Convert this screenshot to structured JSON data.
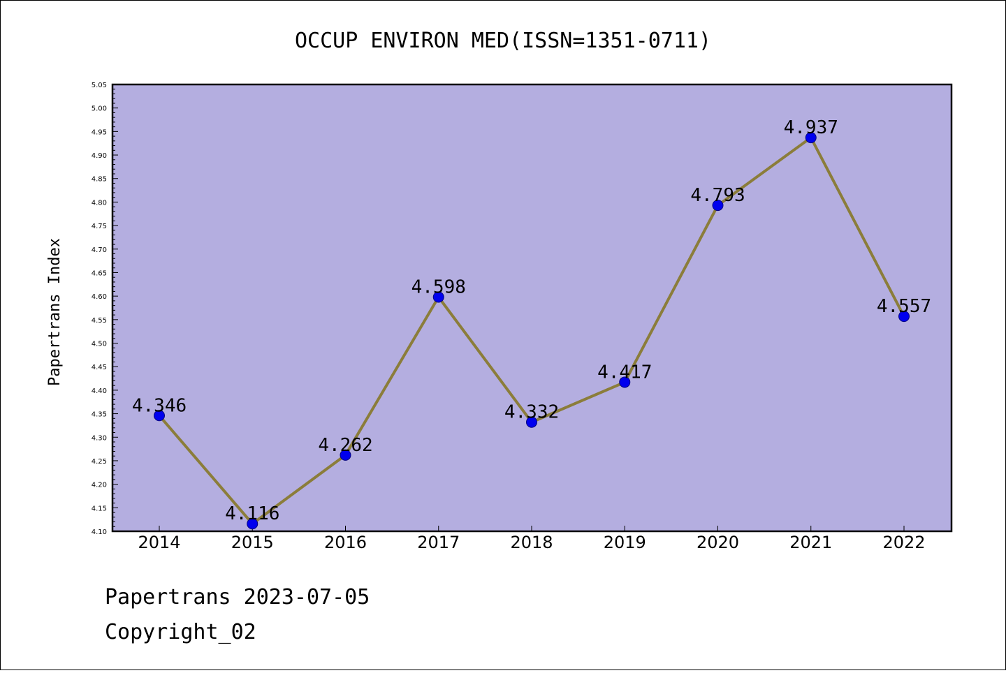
{
  "chart_data": {
    "type": "line",
    "title": "OCCUP ENVIRON MED(ISSN=1351-0711)",
    "xlabel": "",
    "ylabel": "Papertrans Index",
    "categories": [
      "2014",
      "2015",
      "2016",
      "2017",
      "2018",
      "2019",
      "2020",
      "2021",
      "2022"
    ],
    "series": [
      {
        "values": [
          4.346,
          4.116,
          4.262,
          4.598,
          4.332,
          4.417,
          4.793,
          4.937,
          4.557
        ],
        "labels": [
          "4.346",
          "4.116",
          "4.262",
          "4.598",
          "4.332",
          "4.417",
          "4.793",
          "4.937",
          "4.557"
        ]
      }
    ],
    "ylim": [
      4.1,
      5.05
    ],
    "yticks": [
      "4.10",
      "4.15",
      "4.20",
      "4.25",
      "4.30",
      "4.35",
      "4.40",
      "4.45",
      "4.50",
      "4.55",
      "4.60",
      "4.65",
      "4.70",
      "4.75",
      "4.80",
      "4.85",
      "4.90",
      "4.95",
      "5.00",
      "5.05"
    ],
    "grid": false,
    "legend": "none",
    "colors": {
      "plot_background": "#b4aee0",
      "line": "#8b7d3a",
      "marker": "#0000ee",
      "marker_edge": "#000080"
    }
  },
  "footer": {
    "line1": "Papertrans 2023-07-05",
    "line2": "Copyright_02"
  }
}
